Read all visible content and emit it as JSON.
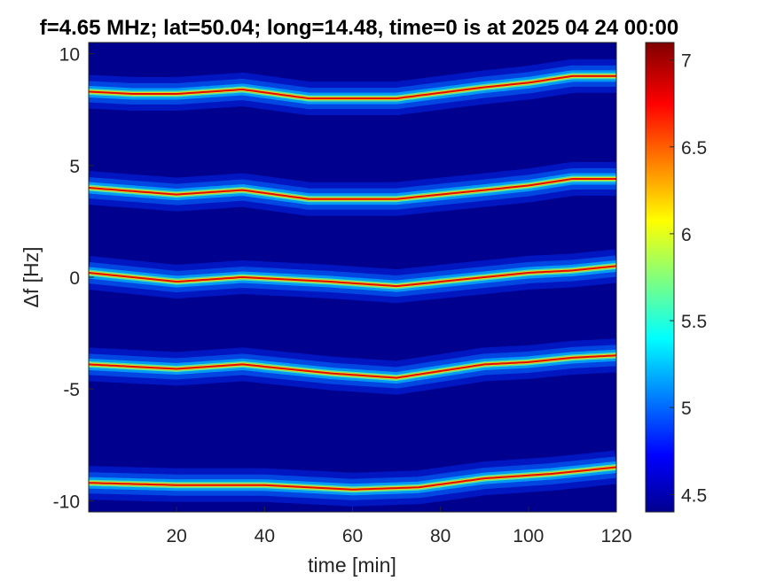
{
  "chart_data": {
    "type": "heatmap",
    "title": "f=4.65 MHz;  lat=50.04; long=14.48, time=0 is at 2025 04 24 00:00",
    "xlabel": "time [min]",
    "ylabel": "Δf [Hz]",
    "xlim": [
      0,
      120
    ],
    "ylim": [
      -10.5,
      10.5
    ],
    "xticks": [
      20,
      40,
      60,
      80,
      100,
      120
    ],
    "yticks": [
      10,
      5,
      0,
      -5,
      -10
    ],
    "xtick_labels": [
      "20",
      "40",
      "60",
      "80",
      "100",
      "120"
    ],
    "ytick_labels": [
      "10",
      "5",
      "0",
      "-5",
      "-10"
    ],
    "colorbar": {
      "range": [
        4.4,
        7.1
      ],
      "colormap": "jet",
      "ticks": [
        4.5,
        5,
        5.5,
        6,
        6.5,
        7
      ],
      "tick_labels": [
        "4.5",
        "5",
        "5.5",
        "6",
        "6.5",
        "7"
      ]
    },
    "background_value": 4.4,
    "bands": [
      {
        "offset_hz": 8.3,
        "track": [
          [
            0,
            8.3
          ],
          [
            10,
            8.2
          ],
          [
            20,
            8.2
          ],
          [
            35,
            8.4
          ],
          [
            50,
            8.0
          ],
          [
            70,
            8.0
          ],
          [
            90,
            8.5
          ],
          [
            100,
            8.7
          ],
          [
            110,
            9.0
          ],
          [
            120,
            9.0
          ]
        ]
      },
      {
        "offset_hz": 4.0,
        "track": [
          [
            0,
            4.0
          ],
          [
            20,
            3.7
          ],
          [
            35,
            3.9
          ],
          [
            50,
            3.5
          ],
          [
            70,
            3.5
          ],
          [
            90,
            3.9
          ],
          [
            100,
            4.1
          ],
          [
            110,
            4.4
          ],
          [
            120,
            4.4
          ]
        ]
      },
      {
        "offset_hz": 0.2,
        "track": [
          [
            0,
            0.2
          ],
          [
            15,
            -0.1
          ],
          [
            20,
            -0.2
          ],
          [
            35,
            0.0
          ],
          [
            55,
            -0.2
          ],
          [
            70,
            -0.4
          ],
          [
            90,
            0.0
          ],
          [
            100,
            0.2
          ],
          [
            110,
            0.3
          ],
          [
            120,
            0.5
          ]
        ]
      },
      {
        "offset_hz": -3.9,
        "track": [
          [
            0,
            -3.9
          ],
          [
            20,
            -4.1
          ],
          [
            35,
            -3.9
          ],
          [
            55,
            -4.3
          ],
          [
            70,
            -4.5
          ],
          [
            90,
            -3.9
          ],
          [
            100,
            -3.8
          ],
          [
            110,
            -3.6
          ],
          [
            120,
            -3.5
          ]
        ]
      },
      {
        "offset_hz": -9.2,
        "track": [
          [
            0,
            -9.2
          ],
          [
            20,
            -9.3
          ],
          [
            40,
            -9.3
          ],
          [
            60,
            -9.5
          ],
          [
            75,
            -9.4
          ],
          [
            90,
            -9.0
          ],
          [
            105,
            -8.8
          ],
          [
            120,
            -8.5
          ]
        ]
      }
    ]
  }
}
